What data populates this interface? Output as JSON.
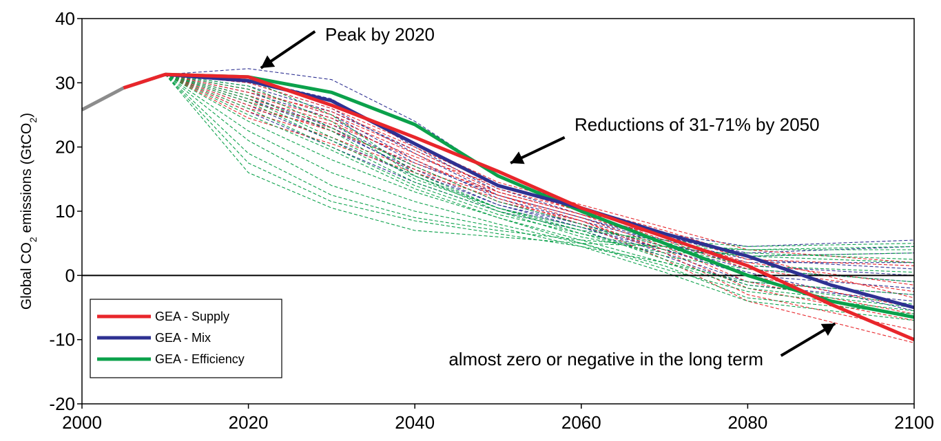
{
  "chart_data": {
    "type": "line",
    "title": "",
    "xlabel": "",
    "ylabel": {
      "prefix": "Global CO",
      "sub1": "2",
      "mid": " emissions (GtCO",
      "sub2": "2",
      "suffix": ")"
    },
    "xlim": [
      2000,
      2100
    ],
    "ylim": [
      -20,
      40
    ],
    "xticks": [
      2000,
      2020,
      2040,
      2060,
      2080,
      2100
    ],
    "yticks": [
      -20,
      -10,
      0,
      10,
      20,
      30,
      40
    ],
    "grid": false,
    "legend": "bottom-left",
    "colors": {
      "supply": "#e8262b",
      "mix": "#2e3192",
      "efficiency": "#0ba14b",
      "history": "#8c8c8c",
      "zero_line": "#000000"
    },
    "historical": {
      "x": [
        2000,
        2005,
        2010
      ],
      "y": [
        25.8,
        29.2,
        31.3
      ]
    },
    "series": [
      {
        "name": "GEA - Supply",
        "key": "supply",
        "x": [
          2005,
          2010,
          2020,
          2030,
          2040,
          2050,
          2060,
          2070,
          2080,
          2090,
          2100
        ],
        "y": [
          29.2,
          31.3,
          30.9,
          26.5,
          21.5,
          16.2,
          10.5,
          6.0,
          1.5,
          -4.5,
          -10.0
        ]
      },
      {
        "name": "GEA - Mix",
        "key": "mix",
        "x": [
          2010,
          2020,
          2030,
          2040,
          2050,
          2060,
          2070,
          2080,
          2090,
          2100
        ],
        "y": [
          31.3,
          30.3,
          27.2,
          20.5,
          14.0,
          10.5,
          6.5,
          3.0,
          -1.5,
          -5.0
        ]
      },
      {
        "name": "GEA - Efficiency",
        "key": "efficiency",
        "x": [
          2010,
          2020,
          2030,
          2040,
          2050,
          2060,
          2070,
          2080,
          2090,
          2100
        ],
        "y": [
          31.3,
          30.9,
          28.5,
          23.5,
          15.5,
          10.0,
          5.0,
          0.0,
          -4.0,
          -6.5
        ]
      }
    ],
    "scenario_bundles": [
      {
        "key": "mix",
        "ends": [
          [
            32.2,
            30.5,
            24.0,
            15.5,
            10.5,
            6.5,
            4.5,
            5.5
          ],
          [
            30.5,
            27.5,
            20.0,
            13.0,
            9.5,
            6.0,
            3.0,
            3.5
          ],
          [
            29.0,
            25.0,
            18.0,
            12.0,
            8.5,
            5.0,
            2.0,
            2.0
          ],
          [
            28.5,
            24.5,
            17.5,
            12.5,
            9.0,
            5.0,
            1.5,
            0.0
          ],
          [
            27.5,
            22.5,
            16.5,
            11.0,
            8.0,
            4.0,
            0.0,
            -2.0
          ],
          [
            26.5,
            21.0,
            15.5,
            10.5,
            7.5,
            3.5,
            -1.0,
            -3.0
          ],
          [
            25.5,
            20.0,
            14.5,
            10.0,
            7.0,
            3.0,
            -1.5,
            -4.0
          ],
          [
            30.0,
            26.0,
            19.0,
            12.5,
            9.0,
            5.5,
            2.5,
            1.0
          ],
          [
            27.0,
            23.5,
            17.0,
            11.5,
            8.0,
            4.5,
            1.0,
            -1.0
          ],
          [
            29.5,
            25.5,
            19.5,
            13.5,
            9.5,
            6.0,
            3.5,
            4.5
          ],
          [
            28.0,
            23.0,
            16.0,
            11.0,
            7.5,
            4.0,
            0.5,
            -5.5
          ]
        ]
      },
      {
        "key": "supply",
        "ends": [
          [
            30.0,
            26.0,
            20.5,
            14.5,
            11.0,
            7.5,
            4.0,
            2.0
          ],
          [
            29.0,
            25.0,
            19.5,
            13.5,
            10.0,
            6.5,
            2.5,
            1.5
          ],
          [
            28.0,
            24.5,
            19.0,
            13.0,
            9.5,
            6.0,
            2.0,
            -1.5
          ],
          [
            27.0,
            23.5,
            18.5,
            14.0,
            10.5,
            7.0,
            3.0,
            -3.5
          ],
          [
            26.5,
            22.5,
            17.5,
            13.0,
            9.5,
            5.0,
            0.0,
            -5.0
          ],
          [
            25.5,
            21.5,
            16.5,
            12.5,
            8.5,
            3.5,
            -3.0,
            -8.5
          ],
          [
            24.5,
            20.5,
            16.0,
            12.0,
            8.0,
            2.5,
            -4.0,
            -10.5
          ],
          [
            28.5,
            25.5,
            20.0,
            14.0,
            10.0,
            5.5,
            1.0,
            -2.5
          ],
          [
            27.5,
            24.0,
            18.0,
            12.5,
            9.0,
            4.5,
            -1.0,
            -6.0
          ],
          [
            26.0,
            23.0,
            17.0,
            11.5,
            8.5,
            4.0,
            -2.0,
            -7.0
          ]
        ]
      },
      {
        "key": "efficiency",
        "ends": [
          [
            30.5,
            25.0,
            16.0,
            10.5,
            7.5,
            5.0,
            4.0,
            4.5
          ],
          [
            29.5,
            24.0,
            15.5,
            10.0,
            7.0,
            5.5,
            4.5,
            5.0
          ],
          [
            28.0,
            22.5,
            15.0,
            10.5,
            6.5,
            4.0,
            3.0,
            3.5
          ],
          [
            27.0,
            21.0,
            14.5,
            10.0,
            6.0,
            3.5,
            3.5,
            2.5
          ],
          [
            26.0,
            20.0,
            14.0,
            9.5,
            6.5,
            3.0,
            1.0,
            -1.0
          ],
          [
            25.0,
            19.5,
            13.5,
            9.0,
            5.5,
            2.0,
            -1.0,
            -3.0
          ],
          [
            24.0,
            18.0,
            13.0,
            9.0,
            5.0,
            1.0,
            -2.5,
            -5.5
          ],
          [
            22.5,
            16.0,
            11.5,
            8.0,
            5.0,
            1.5,
            -3.5,
            -6.0
          ],
          [
            21.0,
            14.0,
            10.0,
            7.5,
            4.5,
            0.5,
            -4.0,
            -7.0
          ],
          [
            19.0,
            12.5,
            9.0,
            7.0,
            5.5,
            4.5,
            3.0,
            2.0
          ],
          [
            16.0,
            10.5,
            7.0,
            6.0,
            5.0,
            4.5,
            4.0,
            4.0
          ],
          [
            17.5,
            11.5,
            8.5,
            6.5,
            4.5,
            2.0,
            -2.0,
            -5.0
          ],
          [
            29.0,
            23.0,
            17.0,
            11.5,
            8.0,
            4.5,
            1.5,
            0.5
          ],
          [
            27.5,
            21.5,
            15.5,
            10.5,
            7.0,
            2.5,
            -1.5,
            -4.5
          ]
        ]
      }
    ],
    "annotations": [
      {
        "key": "peak",
        "text": "Peak by 2020",
        "arrow_from": [
          2028,
          38
        ],
        "arrow_to": [
          2021.5,
          32.3
        ]
      },
      {
        "key": "reductions",
        "text": "Reductions of 31-71% by 2050",
        "arrow_from": [
          2058,
          21.5
        ],
        "arrow_to": [
          2051.5,
          17.5
        ]
      },
      {
        "key": "longterm",
        "text": "almost zero or negative in the long term",
        "arrow_from": [
          2084,
          -12.5
        ],
        "arrow_to": [
          2090.5,
          -7.5
        ]
      }
    ]
  }
}
